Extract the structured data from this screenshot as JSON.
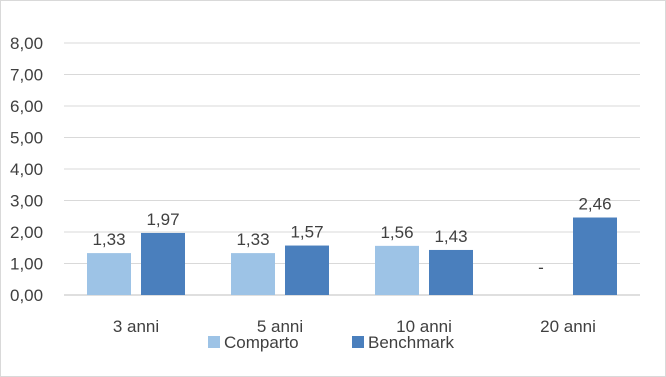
{
  "chart_data": {
    "type": "bar",
    "categories": [
      "3 anni",
      "5 anni",
      "10 anni",
      "20 anni"
    ],
    "series": [
      {
        "name": "Comparto",
        "values": [
          1.33,
          1.33,
          1.56,
          null
        ],
        "labels": [
          "1,33",
          "1,33",
          "1,56",
          "-"
        ],
        "color": "#9dc3e6"
      },
      {
        "name": "Benchmark",
        "values": [
          1.97,
          1.57,
          1.43,
          2.46
        ],
        "labels": [
          "1,97",
          "1,57",
          "1,43",
          "2,46"
        ],
        "color": "#4a7fbd"
      }
    ],
    "ylim": [
      0,
      8
    ],
    "yticks": [
      "0,00",
      "1,00",
      "2,00",
      "3,00",
      "4,00",
      "5,00",
      "6,00",
      "7,00",
      "8,00"
    ],
    "grid": true,
    "legend_position": "bottom",
    "title": "",
    "xlabel": "",
    "ylabel": ""
  }
}
